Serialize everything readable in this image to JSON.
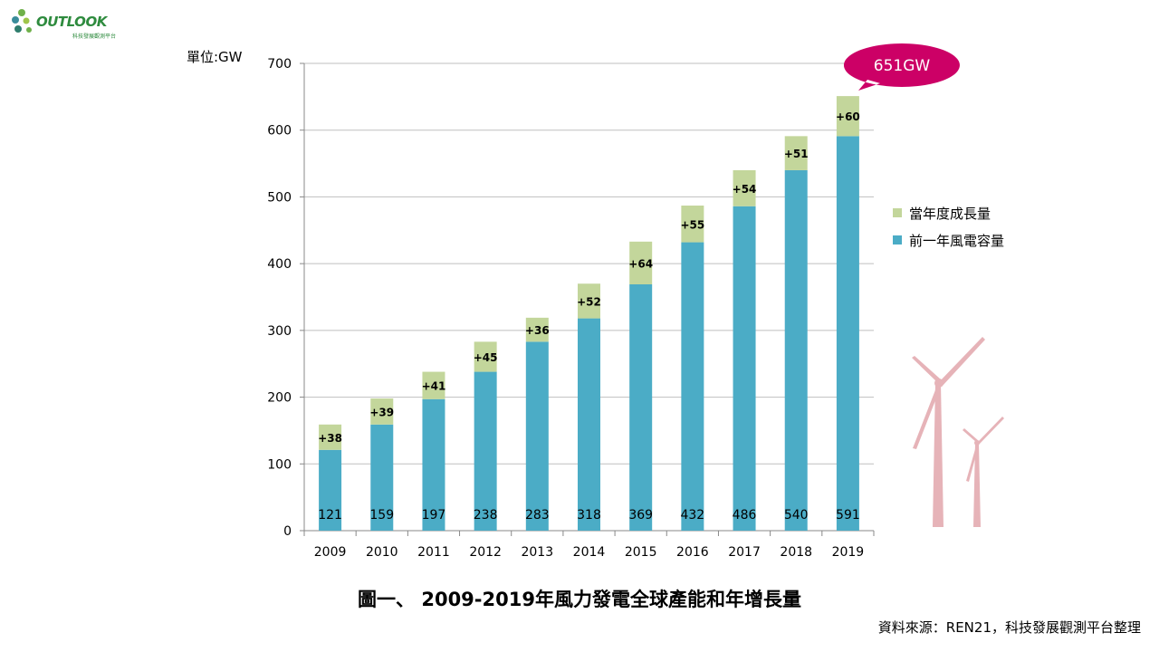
{
  "logo": {
    "text": "OUTLOOK",
    "subtitle": "科技發展觀測平台"
  },
  "unit_label": "單位:GW",
  "callout": "651GW",
  "caption": "圖一、 2009-2019年風力發電全球產能和年增長量",
  "source": "資料來源：REN21，科技發展觀測平台整理",
  "colors": {
    "base": "#4bacc6",
    "growth": "#c3d69b",
    "callout": "#cc0066",
    "grid": "#bfbfbf",
    "turbine": "#e6b3b8"
  },
  "chart_data": {
    "type": "bar",
    "stacked": true,
    "categories": [
      "2009",
      "2010",
      "2011",
      "2012",
      "2013",
      "2014",
      "2015",
      "2016",
      "2017",
      "2018",
      "2019"
    ],
    "series": [
      {
        "name": "前一年風電容量",
        "values": [
          121,
          159,
          197,
          238,
          283,
          318,
          369,
          432,
          486,
          540,
          591
        ],
        "labels": [
          "121",
          "159",
          "197",
          "238",
          "283",
          "318",
          "369",
          "432",
          "486",
          "540",
          "591"
        ]
      },
      {
        "name": "當年度成長量",
        "values": [
          38,
          39,
          41,
          45,
          36,
          52,
          64,
          55,
          54,
          51,
          60
        ],
        "labels": [
          "+38",
          "+39",
          "+41",
          "+45",
          "+36",
          "+52",
          "+64",
          "+55",
          "+54",
          "+51",
          "+60"
        ]
      }
    ],
    "ylim": [
      0,
      700
    ],
    "yticks": [
      "0",
      "100",
      "200",
      "300",
      "400",
      "500",
      "600",
      "700"
    ],
    "ytick_values": [
      0,
      100,
      200,
      300,
      400,
      500,
      600,
      700
    ],
    "grid": true,
    "legend": "right"
  }
}
